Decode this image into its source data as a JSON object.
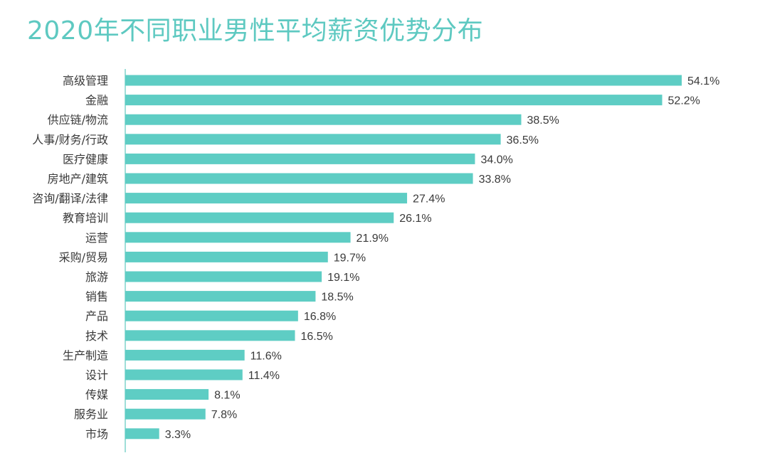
{
  "colors": {
    "bar": "#5ecdc4",
    "axis": "#7fd3cc",
    "title": "#5ec9c1",
    "text": "#3a3a3a"
  },
  "chart_data": {
    "type": "bar",
    "orientation": "horizontal",
    "title": "2020年不同职业男性平均薪资优势分布",
    "xlabel": "",
    "ylabel": "",
    "xlim": [
      0,
      54.1
    ],
    "categories": [
      "高级管理",
      "金融",
      "供应链/物流",
      "人事/财务/行政",
      "医疗健康",
      "房地产/建筑",
      "咨询/翻译/法律",
      "教育培训",
      "运营",
      "采购/贸易",
      "旅游",
      "销售",
      "产品",
      "技术",
      "生产制造",
      "设计",
      "传媒",
      "服务业",
      "市场"
    ],
    "values": [
      54.1,
      52.2,
      38.5,
      36.5,
      34.0,
      33.8,
      27.4,
      26.1,
      21.9,
      19.7,
      19.1,
      18.5,
      16.8,
      16.5,
      11.6,
      11.4,
      8.1,
      7.8,
      3.3
    ],
    "labels": [
      "54.1%",
      "52.2%",
      "38.5%",
      "36.5%",
      "34.0%",
      "33.8%",
      "27.4%",
      "26.1%",
      "21.9%",
      "19.7%",
      "19.1%",
      "18.5%",
      "16.8%",
      "16.5%",
      "11.6%",
      "11.4%",
      "8.1%",
      "7.8%",
      "3.3%"
    ]
  }
}
